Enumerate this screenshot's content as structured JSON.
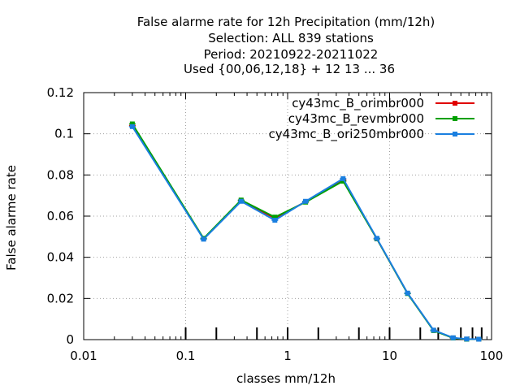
{
  "chart_data": {
    "type": "line",
    "title_lines": [
      "False alarme rate  for 12h Precipitation (mm/12h)",
      "Selection: ALL    839 stations",
      "Period: 20210922-20211022",
      "Used {00,06,12,18} + 12 13 ... 36"
    ],
    "xlabel": "classes mm/12h",
    "ylabel": "False alarme rate",
    "x_scale": "log",
    "xlim": [
      0.01,
      100
    ],
    "ylim": [
      0,
      0.12
    ],
    "grid": true,
    "legend_position": "top-right",
    "x_ticks": [
      {
        "value": 0.01,
        "label": "0.01"
      },
      {
        "value": 0.1,
        "label": "0.1"
      },
      {
        "value": 1,
        "label": "1"
      },
      {
        "value": 10,
        "label": "10"
      },
      {
        "value": 100,
        "label": "100"
      }
    ],
    "y_ticks": [
      {
        "value": 0,
        "label": "0"
      },
      {
        "value": 0.02,
        "label": "0.02"
      },
      {
        "value": 0.04,
        "label": "0.04"
      },
      {
        "value": 0.06,
        "label": "0.06"
      },
      {
        "value": 0.08,
        "label": "0.08"
      },
      {
        "value": 0.1,
        "label": "0.1"
      },
      {
        "value": 0.12,
        "label": "0.12"
      }
    ],
    "class_markers": [
      0.1,
      0.2,
      0.5,
      1,
      2,
      5,
      10,
      20,
      30,
      50,
      65,
      80
    ],
    "x": [
      0.03,
      0.15,
      0.35,
      0.75,
      1.5,
      3.5,
      7.5,
      15,
      27,
      42,
      57,
      75
    ],
    "series": [
      {
        "name": "cy43mc_B_orimbr000",
        "color": "#e00000",
        "values": [
          0.104,
          0.049,
          0.0675,
          0.059,
          0.067,
          0.0775,
          0.049,
          0.0225,
          0.0045,
          0.0008,
          0.0002,
          0.0002
        ]
      },
      {
        "name": "cy43mc_B_revmbr000",
        "color": "#00a000",
        "values": [
          0.1048,
          0.0492,
          0.0678,
          0.0595,
          0.0668,
          0.077,
          0.049,
          0.0224,
          0.0044,
          0.0008,
          0.0002,
          0.0002
        ]
      },
      {
        "name": "cy43mc_B_ori250mbr000",
        "color": "#1a7fe0",
        "values": [
          0.1035,
          0.0488,
          0.0672,
          0.058,
          0.0672,
          0.0782,
          0.0492,
          0.0226,
          0.0046,
          0.0009,
          0.0003,
          0.0002
        ]
      }
    ]
  }
}
